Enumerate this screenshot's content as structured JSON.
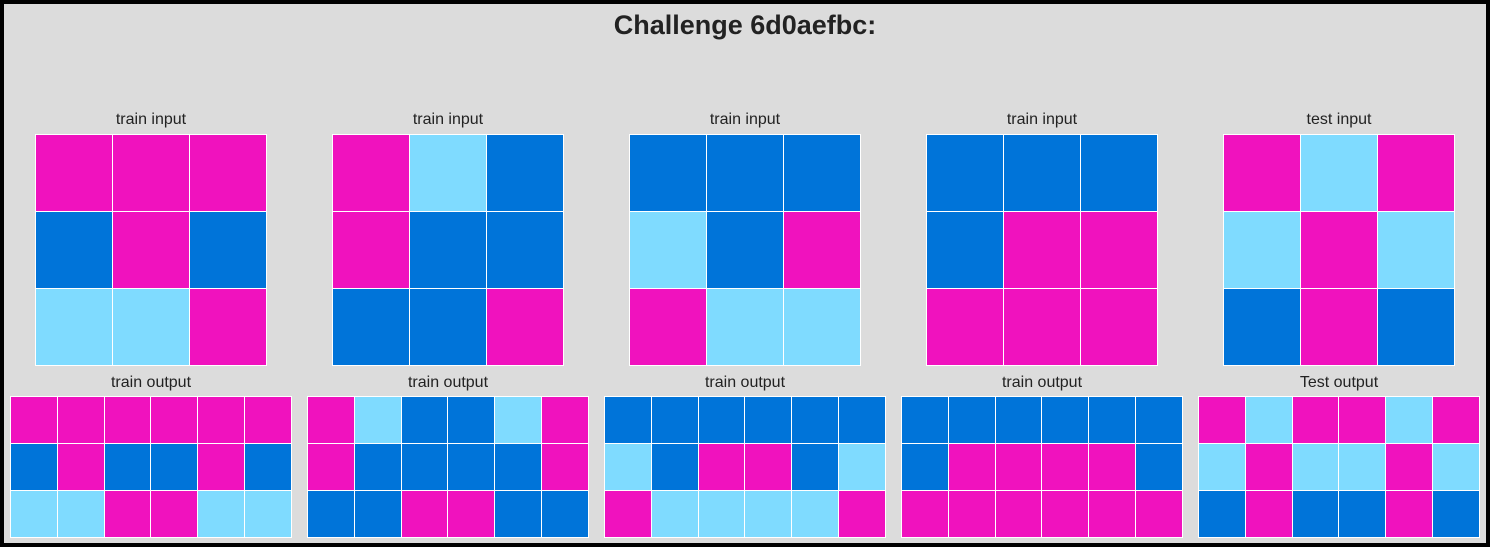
{
  "title": "Challenge 6d0aefbc:",
  "colors": {
    "0": "#000000",
    "1": "#0074d9",
    "6": "#f012be",
    "8": "#7fdbff"
  },
  "panels": [
    {
      "input_label": "train input",
      "output_label": "train output",
      "input": [
        [
          6,
          6,
          6
        ],
        [
          1,
          6,
          1
        ],
        [
          8,
          8,
          6
        ]
      ],
      "output": [
        [
          6,
          6,
          6,
          6,
          6,
          6
        ],
        [
          1,
          6,
          1,
          1,
          6,
          1
        ],
        [
          8,
          8,
          6,
          6,
          8,
          8
        ]
      ]
    },
    {
      "input_label": "train input",
      "output_label": "train output",
      "input": [
        [
          6,
          8,
          1
        ],
        [
          6,
          1,
          1
        ],
        [
          1,
          1,
          6
        ]
      ],
      "output": [
        [
          6,
          8,
          1,
          1,
          8,
          6
        ],
        [
          6,
          1,
          1,
          1,
          1,
          6
        ],
        [
          1,
          1,
          6,
          6,
          1,
          1
        ]
      ]
    },
    {
      "input_label": "train input",
      "output_label": "train output",
      "input": [
        [
          1,
          1,
          1
        ],
        [
          8,
          1,
          6
        ],
        [
          6,
          8,
          8
        ]
      ],
      "output": [
        [
          1,
          1,
          1,
          1,
          1,
          1
        ],
        [
          8,
          1,
          6,
          6,
          1,
          8
        ],
        [
          6,
          8,
          8,
          8,
          8,
          6
        ]
      ]
    },
    {
      "input_label": "train input",
      "output_label": "train output",
      "input": [
        [
          1,
          1,
          1
        ],
        [
          1,
          6,
          6
        ],
        [
          6,
          6,
          6
        ]
      ],
      "output": [
        [
          1,
          1,
          1,
          1,
          1,
          1
        ],
        [
          1,
          6,
          6,
          6,
          6,
          1
        ],
        [
          6,
          6,
          6,
          6,
          6,
          6
        ]
      ]
    },
    {
      "input_label": "test input",
      "output_label": "Test output",
      "input": [
        [
          6,
          8,
          6
        ],
        [
          8,
          6,
          8
        ],
        [
          1,
          6,
          1
        ]
      ],
      "output": [
        [
          6,
          8,
          6,
          6,
          8,
          6
        ],
        [
          8,
          6,
          8,
          8,
          6,
          8
        ],
        [
          1,
          6,
          1,
          1,
          6,
          1
        ]
      ]
    }
  ]
}
